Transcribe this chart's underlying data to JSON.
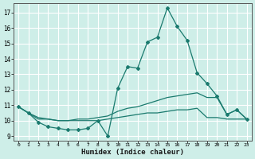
{
  "title": "",
  "xlabel": "Humidex (Indice chaleur)",
  "ylabel": "",
  "xlim": [
    -0.5,
    23.5
  ],
  "ylim": [
    8.7,
    17.6
  ],
  "yticks": [
    9,
    10,
    11,
    12,
    13,
    14,
    15,
    16,
    17
  ],
  "xticks": [
    0,
    1,
    2,
    3,
    4,
    5,
    6,
    7,
    8,
    9,
    10,
    11,
    12,
    13,
    14,
    15,
    16,
    17,
    18,
    19,
    20,
    21,
    22,
    23
  ],
  "background_color": "#ceeee8",
  "grid_color": "#ffffff",
  "line_color": "#1a7a6e",
  "line1_x": [
    0,
    1,
    2,
    3,
    4,
    5,
    6,
    7,
    8,
    9,
    10,
    11,
    12,
    13,
    14,
    15,
    16,
    17,
    18,
    19,
    20,
    21,
    22,
    23
  ],
  "line1_y": [
    10.9,
    10.5,
    9.9,
    9.6,
    9.5,
    9.4,
    9.4,
    9.5,
    10.0,
    9.0,
    12.1,
    13.5,
    13.4,
    15.1,
    15.4,
    17.3,
    16.1,
    15.2,
    13.1,
    12.4,
    11.6,
    10.4,
    10.7,
    10.1
  ],
  "line2_x": [
    0,
    1,
    2,
    3,
    4,
    5,
    6,
    7,
    8,
    9,
    10,
    11,
    12,
    13,
    14,
    15,
    16,
    17,
    18,
    19,
    20,
    21,
    22,
    23
  ],
  "line2_y": [
    10.9,
    10.5,
    10.1,
    10.1,
    10.0,
    10.0,
    10.1,
    10.1,
    10.2,
    10.3,
    10.6,
    10.8,
    10.9,
    11.1,
    11.3,
    11.5,
    11.6,
    11.7,
    11.8,
    11.5,
    11.5,
    10.4,
    10.7,
    10.1
  ],
  "line3_x": [
    0,
    1,
    2,
    3,
    4,
    5,
    6,
    7,
    8,
    9,
    10,
    11,
    12,
    13,
    14,
    15,
    16,
    17,
    18,
    19,
    20,
    21,
    22,
    23
  ],
  "line3_y": [
    10.9,
    10.5,
    10.2,
    10.1,
    10.0,
    10.0,
    10.0,
    10.0,
    10.0,
    10.1,
    10.2,
    10.3,
    10.4,
    10.5,
    10.5,
    10.6,
    10.7,
    10.7,
    10.8,
    10.2,
    10.2,
    10.1,
    10.1,
    10.1
  ]
}
